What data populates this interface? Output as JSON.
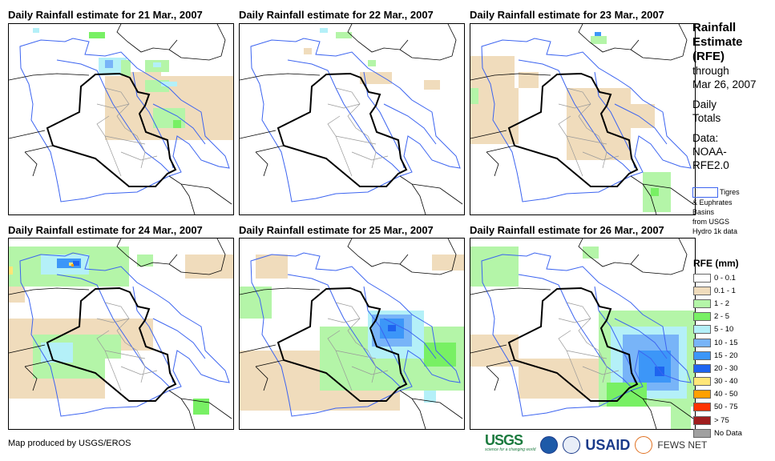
{
  "panels": [
    {
      "title": "Daily Rainfall estimate for 21 Mar., 2007"
    },
    {
      "title": "Daily Rainfall estimate for 22 Mar., 2007"
    },
    {
      "title": "Daily Rainfall estimate for 23 Mar., 2007"
    },
    {
      "title": "Daily Rainfall estimate for 24 Mar., 2007"
    },
    {
      "title": "Daily Rainfall estimate for 25 Mar., 2007"
    },
    {
      "title": "Daily Rainfall estimate for 26 Mar., 2007"
    }
  ],
  "side": {
    "title1": "Rainfall",
    "title2": "Estimate",
    "title3": "(RFE)",
    "through": "through",
    "date": "Mar 26, 2007",
    "daily1": "Daily",
    "daily2": "Totals",
    "data1": "Data:",
    "data2": "NOAA-",
    "data3": "RFE2.0"
  },
  "basin": {
    "line1": "Tigres",
    "line2": "& Euphrates",
    "line3": "Basins",
    "line4": "from USGS",
    "line5": "Hydro 1k data"
  },
  "legend": {
    "title": "RFE (mm)",
    "items": [
      {
        "label": "0 - 0.1",
        "color": "#ffffff"
      },
      {
        "label": "0.1 - 1",
        "color": "#f0dcbc"
      },
      {
        "label": "1 - 2",
        "color": "#b4f5a8"
      },
      {
        "label": "2 - 5",
        "color": "#78f064"
      },
      {
        "label": "5 - 10",
        "color": "#b4f0f8"
      },
      {
        "label": "10 - 15",
        "color": "#78b4f8"
      },
      {
        "label": "15 - 20",
        "color": "#3c96f8"
      },
      {
        "label": "20 - 30",
        "color": "#1e64f0"
      },
      {
        "label": "30 - 40",
        "color": "#ffe678"
      },
      {
        "label": "40 - 50",
        "color": "#ffa000"
      },
      {
        "label": "50 - 75",
        "color": "#ff3200"
      },
      {
        "label": "> 75",
        "color": "#a01e1e"
      },
      {
        "label": "No Data",
        "color": "#a0a0a0"
      }
    ]
  },
  "footer": {
    "credit": "Map produced by USGS/EROS"
  },
  "logos": {
    "usgs": "USGS",
    "usgs_tag": "science for a changing world",
    "usaid": "USAID",
    "fews": "FEWS NET"
  }
}
